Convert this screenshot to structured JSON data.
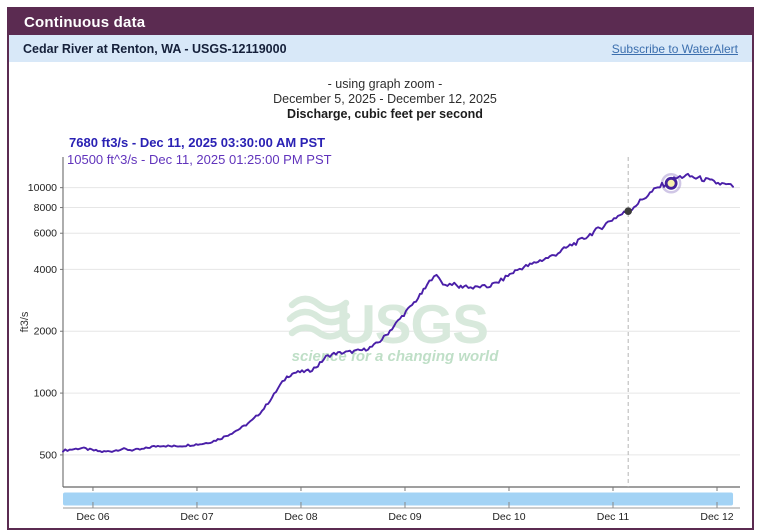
{
  "header": {
    "title": "Continuous data"
  },
  "station": {
    "title": "Cedar River at Renton, WA - USGS-12119000",
    "subscribe": "Subscribe to WaterAlert"
  },
  "chart_header": {
    "zoom_note": "- using graph zoom -",
    "date_range": "December 5, 2025 - December 12, 2025",
    "parameter": "Discharge, cubic feet per second",
    "readout_primary": "7680 ft3/s - Dec 11, 2025 03:30:00 AM PST",
    "readout_secondary": "10500 ft^3/s - Dec 11, 2025 01:25:00 PM PST"
  },
  "colors": {
    "header_bg": "#5b2b51",
    "station_bg": "#d8e8f8",
    "link": "#3c6fae",
    "line": "#4a1fa8",
    "readout_primary": "#2a21b4",
    "readout_secondary": "#6134bc",
    "grid": "#e6e6e6",
    "axis": "#777777",
    "tick_text": "#222222",
    "slider": "#a3d3f5",
    "watermark": "#d8e9dc",
    "watermark_tagline": "#bfdfc7",
    "cursor_line": "#b5b5b5",
    "cursor_dot": "#3c3c3c",
    "marker_fill": "#f6f0ad",
    "marker_stroke": "#43219c"
  },
  "chart_data": {
    "type": "line",
    "title": "Discharge, cubic feet per second",
    "ylabel": "ft3/s",
    "yscale": "log",
    "grid": "horizontal-only",
    "x_domain_days_from_dec5": [
      0.712,
      7.221
    ],
    "y_domain": [
      349,
      14100
    ],
    "y_ticks": [
      500,
      1000,
      2000,
      4000,
      6000,
      8000,
      10000
    ],
    "x_ticks": [
      {
        "d": 1,
        "label": "Dec 06"
      },
      {
        "d": 2,
        "label": "Dec 07"
      },
      {
        "d": 3,
        "label": "Dec 08"
      },
      {
        "d": 4,
        "label": "Dec 09"
      },
      {
        "d": 5,
        "label": "Dec 10"
      },
      {
        "d": 6,
        "label": "Dec 11"
      },
      {
        "d": 7,
        "label": "Dec 12"
      }
    ],
    "cursor_point": {
      "d": 6.146,
      "value": 7680,
      "label": "Dec 11, 2025 03:30:00 AM PST"
    },
    "highlight_point": {
      "d": 6.559,
      "value": 10500,
      "label": "Dec 11, 2025 01:25:00 PM PST"
    },
    "watermark": {
      "org": "USGS",
      "tagline": "science for a changing world"
    },
    "noise": {
      "min": 0.012,
      "max": 0.03
    },
    "series": [
      {
        "name": "Discharge, cubic feet per second",
        "points": [
          [
            0.712,
            525
          ],
          [
            0.798,
            532
          ],
          [
            0.894,
            540
          ],
          [
            0.99,
            528
          ],
          [
            1.087,
            518
          ],
          [
            1.183,
            522
          ],
          [
            1.279,
            535
          ],
          [
            1.375,
            528
          ],
          [
            1.471,
            532
          ],
          [
            1.567,
            548
          ],
          [
            1.663,
            556
          ],
          [
            1.76,
            550
          ],
          [
            1.856,
            554
          ],
          [
            1.952,
            560
          ],
          [
            2.048,
            566
          ],
          [
            2.144,
            580
          ],
          [
            2.24,
            605
          ],
          [
            2.337,
            640
          ],
          [
            2.433,
            680
          ],
          [
            2.529,
            735
          ],
          [
            2.625,
            820
          ],
          [
            2.721,
            950
          ],
          [
            2.798,
            1090
          ],
          [
            2.865,
            1200
          ],
          [
            2.933,
            1255
          ],
          [
            3.01,
            1270
          ],
          [
            3.087,
            1285
          ],
          [
            3.163,
            1360
          ],
          [
            3.24,
            1500
          ],
          [
            3.317,
            1555
          ],
          [
            3.413,
            1575
          ],
          [
            3.51,
            1595
          ],
          [
            3.606,
            1625
          ],
          [
            3.683,
            1680
          ],
          [
            3.76,
            1790
          ],
          [
            3.837,
            1960
          ],
          [
            3.913,
            2180
          ],
          [
            3.99,
            2420
          ],
          [
            4.067,
            2680
          ],
          [
            4.144,
            2980
          ],
          [
            4.212,
            3330
          ],
          [
            4.279,
            3780
          ],
          [
            4.327,
            3600
          ],
          [
            4.385,
            3350
          ],
          [
            4.452,
            3420
          ],
          [
            4.519,
            3280
          ],
          [
            4.587,
            3330
          ],
          [
            4.654,
            3240
          ],
          [
            4.721,
            3300
          ],
          [
            4.788,
            3280
          ],
          [
            4.856,
            3400
          ],
          [
            4.923,
            3530
          ],
          [
            4.99,
            3730
          ],
          [
            5.058,
            3920
          ],
          [
            5.125,
            4080
          ],
          [
            5.202,
            4200
          ],
          [
            5.279,
            4380
          ],
          [
            5.356,
            4520
          ],
          [
            5.433,
            4690
          ],
          [
            5.51,
            4950
          ],
          [
            5.587,
            5220
          ],
          [
            5.663,
            5450
          ],
          [
            5.74,
            5750
          ],
          [
            5.817,
            6100
          ],
          [
            5.894,
            6450
          ],
          [
            5.971,
            6900
          ],
          [
            6.048,
            7280
          ],
          [
            6.144,
            7680
          ],
          [
            6.221,
            8250
          ],
          [
            6.298,
            8900
          ],
          [
            6.375,
            9550
          ],
          [
            6.452,
            10150
          ],
          [
            6.529,
            10600
          ],
          [
            6.606,
            11100
          ],
          [
            6.683,
            11400
          ],
          [
            6.74,
            11350
          ],
          [
            6.798,
            11150
          ],
          [
            6.856,
            11050
          ],
          [
            6.933,
            10750
          ],
          [
            7.01,
            10500
          ],
          [
            7.087,
            10300
          ],
          [
            7.154,
            10100
          ]
        ]
      }
    ]
  }
}
